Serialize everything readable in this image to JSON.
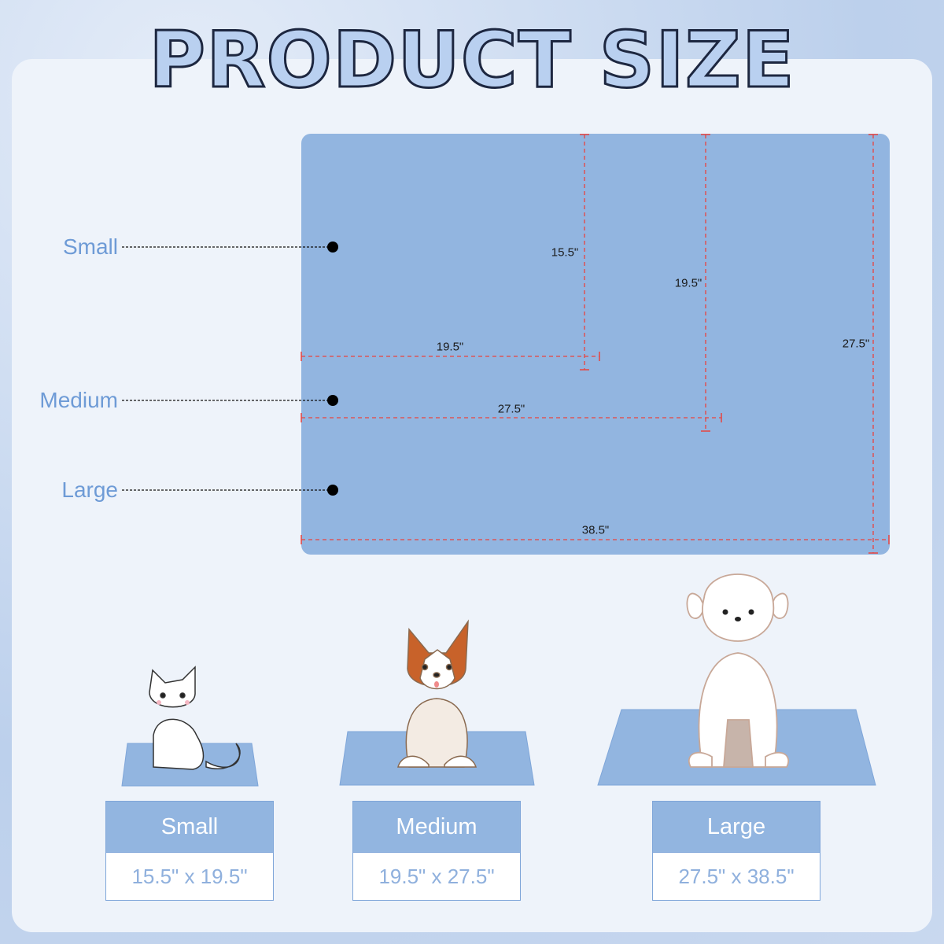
{
  "title": "PRODUCT SIZE",
  "colors": {
    "mat": "#92b5e0",
    "dimension_line": "#e8433f",
    "label": "#6e9bd6",
    "panel": "#eef3fa"
  },
  "callouts": [
    {
      "label": "Small"
    },
    {
      "label": "Medium"
    },
    {
      "label": "Large"
    }
  ],
  "dimensions": {
    "small_height": "15.5\"",
    "small_width": "19.5\"",
    "medium_height": "19.5\"",
    "medium_width": "27.5\"",
    "large_height": "27.5\"",
    "large_width": "38.5\""
  },
  "sizes": [
    {
      "name": "Small",
      "size": "15.5\" x 19.5\"",
      "pet": "cat"
    },
    {
      "name": "Medium",
      "size": "19.5\" x 27.5\"",
      "pet": "corgi"
    },
    {
      "name": "Large",
      "size": "27.5\" x 38.5\"",
      "pet": "poodle"
    }
  ]
}
